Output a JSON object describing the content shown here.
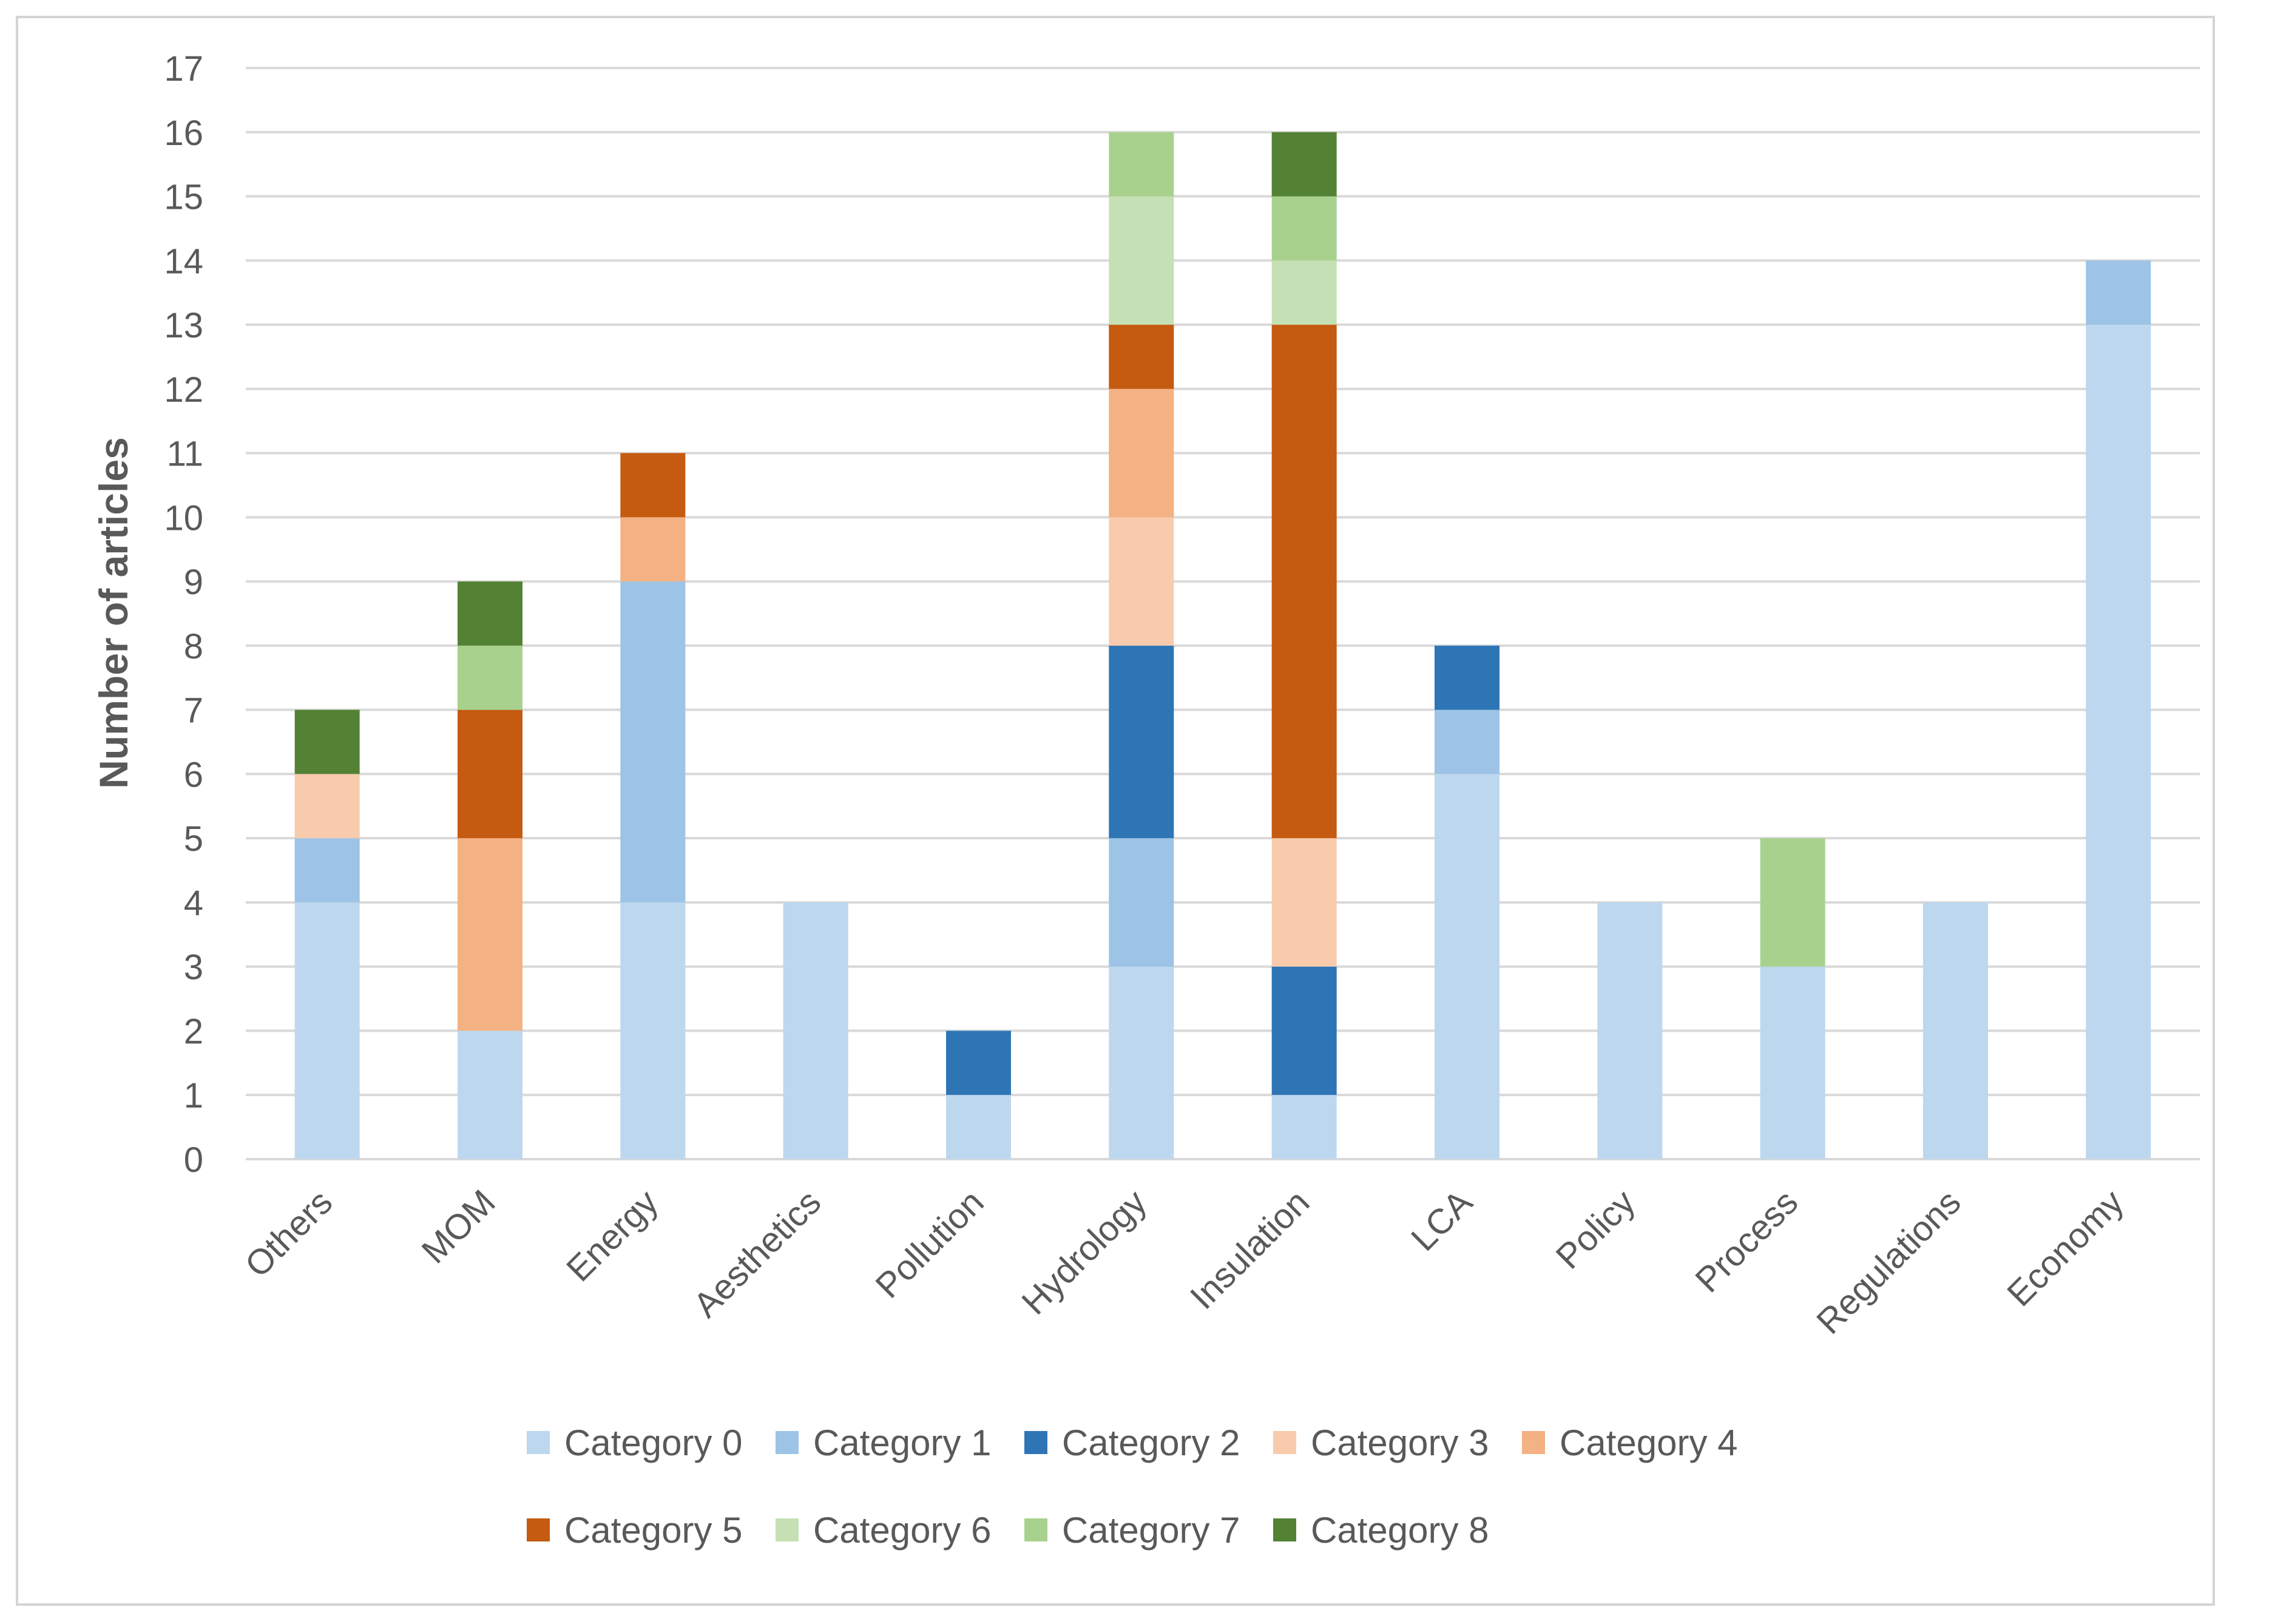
{
  "chart_data": {
    "type": "bar",
    "stacked": true,
    "title": "",
    "xlabel": "",
    "ylabel": "Number of articles",
    "ylim": [
      0,
      17
    ],
    "yticks": [
      0,
      1,
      2,
      3,
      4,
      5,
      6,
      7,
      8,
      9,
      10,
      11,
      12,
      13,
      14,
      15,
      16,
      17
    ],
    "grid": true,
    "legend_position": "bottom",
    "categories": [
      "Others",
      "MOM",
      "Energy",
      "Aesthetics",
      "Pollution",
      "Hydrology",
      "Insulation",
      "LCA",
      "Policy",
      "Process",
      "Regulations",
      "Economy"
    ],
    "series": [
      {
        "name": "Category 0",
        "color": "#bdd7ee",
        "values": [
          4,
          2,
          4,
          4,
          1,
          3,
          1,
          6,
          4,
          3,
          4,
          13
        ]
      },
      {
        "name": "Category 1",
        "color": "#9dc3e6",
        "values": [
          1,
          0,
          5,
          0,
          0,
          2,
          0,
          1,
          0,
          0,
          0,
          1
        ]
      },
      {
        "name": "Category 2",
        "color": "#2e75b6",
        "values": [
          0,
          0,
          0,
          0,
          1,
          3,
          2,
          1,
          0,
          0,
          0,
          0
        ]
      },
      {
        "name": "Category 3",
        "color": "#f8cbad",
        "values": [
          1,
          0,
          0,
          0,
          0,
          2,
          2,
          0,
          0,
          0,
          0,
          0
        ]
      },
      {
        "name": "Category 4",
        "color": "#f4b183",
        "values": [
          0,
          3,
          1,
          0,
          0,
          2,
          0,
          0,
          0,
          0,
          0,
          0
        ]
      },
      {
        "name": "Category 5",
        "color": "#c55a11",
        "values": [
          0,
          2,
          1,
          0,
          0,
          1,
          8,
          0,
          0,
          0,
          0,
          0
        ]
      },
      {
        "name": "Category 6",
        "color": "#c5e0b4",
        "values": [
          0,
          0,
          0,
          0,
          0,
          2,
          1,
          0,
          0,
          0,
          0,
          0
        ]
      },
      {
        "name": "Category 7",
        "color": "#a9d18e",
        "values": [
          0,
          1,
          0,
          0,
          0,
          1,
          1,
          0,
          0,
          2,
          0,
          0
        ]
      },
      {
        "name": "Category 8",
        "color": "#548235",
        "values": [
          1,
          1,
          0,
          0,
          0,
          0,
          1,
          0,
          0,
          0,
          0,
          0
        ]
      }
    ]
  }
}
